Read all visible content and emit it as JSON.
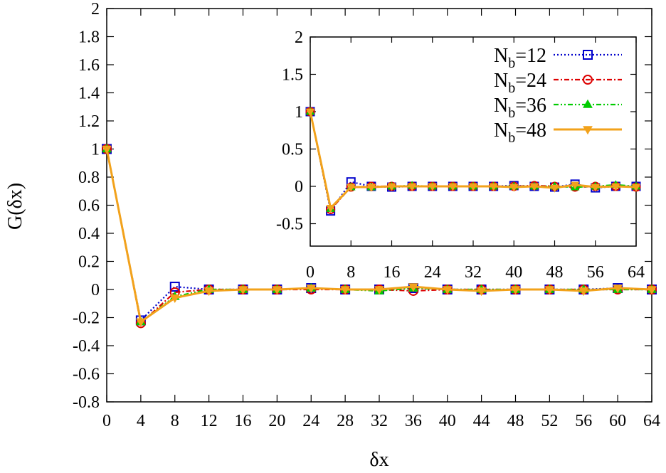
{
  "chart_data": [
    {
      "type": "line",
      "panel": "main",
      "xlabel": "δx",
      "ylabel": "G(δx)",
      "xlim": [
        0,
        64
      ],
      "ylim": [
        -0.8,
        2
      ],
      "xticks": [
        "0",
        "4",
        "8",
        "12",
        "16",
        "20",
        "24",
        "28",
        "32",
        "36",
        "40",
        "44",
        "48",
        "52",
        "56",
        "60",
        "64"
      ],
      "yticks": [
        "2",
        "1.8",
        "1.6",
        "1.4",
        "1.2",
        "1",
        "0.8",
        "0.6",
        "0.4",
        "0.2",
        "0",
        "-0.2",
        "-0.4",
        "-0.6",
        "-0.8"
      ],
      "grid": false,
      "series": [
        {
          "name": "N_b=12",
          "color": "#0000cc",
          "marker": "square",
          "line": "dotted",
          "x": [
            0,
            4,
            8,
            12,
            16,
            20,
            24,
            28,
            32,
            36,
            40,
            44,
            48,
            52,
            56,
            60,
            64
          ],
          "y": [
            1.0,
            -0.22,
            0.02,
            0.0,
            0.0,
            0.0,
            0.01,
            0.0,
            0.0,
            0.01,
            0.0,
            0.0,
            0.0,
            0.0,
            0.0,
            0.01,
            0.0
          ]
        },
        {
          "name": "N_b=24",
          "color": "#dd0000",
          "marker": "circle",
          "line": "dashdot",
          "x": [
            0,
            4,
            8,
            12,
            16,
            20,
            24,
            28,
            32,
            36,
            40,
            44,
            48,
            52,
            56,
            60,
            64
          ],
          "y": [
            1.0,
            -0.24,
            -0.02,
            0.0,
            0.0,
            0.0,
            0.0,
            0.0,
            0.0,
            -0.01,
            0.0,
            0.0,
            0.0,
            0.0,
            0.0,
            0.0,
            0.0
          ]
        },
        {
          "name": "N_b=36",
          "color": "#00cc00",
          "marker": "triangle-up",
          "line": "dashdotdot",
          "x": [
            0,
            4,
            8,
            12,
            16,
            20,
            24,
            28,
            32,
            36,
            40,
            44,
            48,
            52,
            56,
            60,
            64
          ],
          "y": [
            1.0,
            -0.23,
            -0.05,
            0.0,
            0.0,
            0.0,
            0.01,
            0.0,
            -0.01,
            0.01,
            0.0,
            0.0,
            0.0,
            0.0,
            0.0,
            0.0,
            0.0
          ]
        },
        {
          "name": "N_b=48",
          "color": "#f2a21b",
          "marker": "triangle-down",
          "line": "solid",
          "x": [
            0,
            4,
            8,
            12,
            16,
            20,
            24,
            28,
            32,
            36,
            40,
            44,
            48,
            52,
            56,
            60,
            64
          ],
          "y": [
            1.0,
            -0.23,
            -0.06,
            -0.01,
            0.0,
            0.0,
            0.01,
            0.0,
            0.0,
            0.02,
            0.0,
            -0.01,
            0.0,
            0.0,
            -0.01,
            0.01,
            0.0
          ]
        }
      ]
    },
    {
      "type": "line",
      "panel": "inset",
      "xlim": [
        0,
        64
      ],
      "ylim": [
        -0.8,
        2
      ],
      "xticks": [
        "0",
        "8",
        "16",
        "24",
        "32",
        "40",
        "48",
        "56",
        "64"
      ],
      "yticks": [
        "2",
        "1.5",
        "1",
        "0.5",
        "0",
        "-0.5"
      ],
      "grid": false,
      "legend_position": "top-right",
      "series": [
        {
          "name": "N_b=12",
          "color": "#0000cc",
          "marker": "square",
          "line": "dotted",
          "x": [
            0,
            4,
            8,
            12,
            16,
            20,
            24,
            28,
            32,
            36,
            40,
            44,
            48,
            52,
            56,
            60,
            64
          ],
          "y": [
            1.0,
            -0.33,
            0.06,
            0.0,
            -0.01,
            0.0,
            0.0,
            0.0,
            0.0,
            0.0,
            0.01,
            0.0,
            -0.01,
            0.03,
            -0.02,
            0.0,
            0.0
          ]
        },
        {
          "name": "N_b=24",
          "color": "#dd0000",
          "marker": "circle",
          "line": "dashdot",
          "x": [
            0,
            4,
            8,
            12,
            16,
            20,
            24,
            28,
            32,
            36,
            40,
            44,
            48,
            52,
            56,
            60,
            64
          ],
          "y": [
            1.0,
            -0.31,
            -0.01,
            0.0,
            0.0,
            0.0,
            0.0,
            0.0,
            0.0,
            0.0,
            0.0,
            0.01,
            0.0,
            -0.01,
            0.0,
            0.0,
            -0.01
          ]
        },
        {
          "name": "N_b=36",
          "color": "#00cc00",
          "marker": "triangle-up",
          "line": "dashdotdot",
          "x": [
            0,
            4,
            8,
            12,
            16,
            20,
            24,
            28,
            32,
            36,
            40,
            44,
            48,
            52,
            56,
            60,
            64
          ],
          "y": [
            1.0,
            -0.3,
            -0.01,
            -0.01,
            0.0,
            0.01,
            0.0,
            0.0,
            0.0,
            0.0,
            0.0,
            0.0,
            0.0,
            -0.01,
            0.0,
            0.02,
            0.0
          ]
        },
        {
          "name": "N_b=48",
          "color": "#f2a21b",
          "marker": "triangle-down",
          "line": "solid",
          "x": [
            0,
            4,
            8,
            12,
            16,
            20,
            24,
            28,
            32,
            36,
            40,
            44,
            48,
            52,
            56,
            60,
            64
          ],
          "y": [
            1.0,
            -0.29,
            -0.01,
            -0.01,
            0.0,
            0.0,
            0.0,
            0.0,
            0.0,
            0.0,
            -0.01,
            0.0,
            -0.02,
            0.02,
            -0.01,
            0.0,
            -0.01
          ]
        }
      ]
    }
  ]
}
